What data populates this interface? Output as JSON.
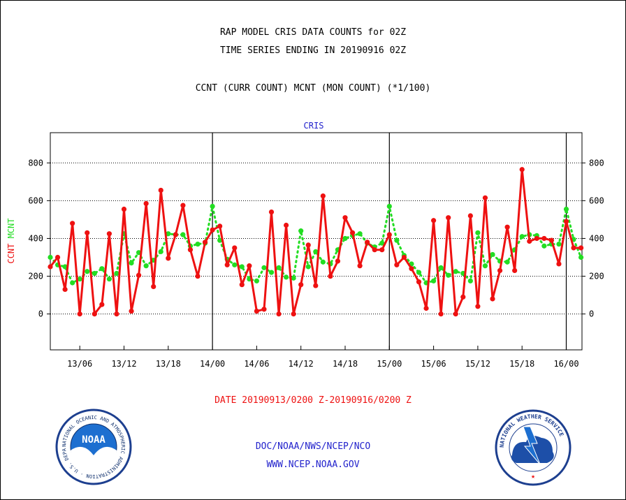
{
  "title_line1": "RAP MODEL CRIS DATA COUNTS for 02Z",
  "title_line2": "TIME SERIES ENDING IN 20190916 02Z",
  "subtitle": "CCNT (CURR COUNT) MCNT (MON COUNT) (*1/100)",
  "date_range": "DATE 20190913/0200 Z-20190916/0200 Z",
  "credit": "DOC/NOAA/NWS/NCEP/NCO",
  "website": "WWW.NCEP.NOAA.GOV",
  "logo_left": {
    "text": "NOAA",
    "ring_text": "NATIONAL OCEANIC AND ATMOSPHERIC ADMINISTRATION · U.S. DEPARTMENT OF COMMERCE"
  },
  "logo_right": {
    "ring_text": "NATIONAL WEATHER SERVICE"
  },
  "colors": {
    "ccnt": "#ee1111",
    "mcnt": "#22dd22",
    "plot_label": "#2222cc",
    "footer": "#2222cc",
    "date": "#ee1111"
  },
  "chart_data": {
    "type": "line",
    "title": "CRIS",
    "ylabel_parts": [
      {
        "text": "CCNT",
        "color": "#ee1111"
      },
      {
        "text": "MCNT",
        "color": "#22dd22"
      }
    ],
    "x": [
      "13/02",
      "13/03",
      "13/04",
      "13/05",
      "13/06",
      "13/07",
      "13/08",
      "13/09",
      "13/10",
      "13/11",
      "13/12",
      "13/13",
      "13/14",
      "13/15",
      "13/16",
      "13/17",
      "13/18",
      "13/19",
      "13/20",
      "13/21",
      "13/22",
      "13/23",
      "14/00",
      "14/01",
      "14/02",
      "14/03",
      "14/04",
      "14/05",
      "14/06",
      "14/07",
      "14/08",
      "14/09",
      "14/10",
      "14/11",
      "14/12",
      "14/13",
      "14/14",
      "14/15",
      "14/16",
      "14/17",
      "14/18",
      "14/19",
      "14/20",
      "14/21",
      "14/22",
      "14/23",
      "15/00",
      "15/01",
      "15/02",
      "15/03",
      "15/04",
      "15/05",
      "15/06",
      "15/07",
      "15/08",
      "15/09",
      "15/10",
      "15/11",
      "15/12",
      "15/13",
      "15/14",
      "15/15",
      "15/16",
      "15/17",
      "15/18",
      "15/19",
      "15/20",
      "15/21",
      "15/22",
      "15/23",
      "16/00",
      "16/01",
      "16/02"
    ],
    "xticks": [
      {
        "x": "13/06",
        "label": "13/06"
      },
      {
        "x": "13/12",
        "label": "13/12"
      },
      {
        "x": "13/18",
        "label": "13/18"
      },
      {
        "x": "14/00",
        "label": "14/00"
      },
      {
        "x": "14/06",
        "label": "14/06"
      },
      {
        "x": "14/12",
        "label": "14/12"
      },
      {
        "x": "14/18",
        "label": "14/18"
      },
      {
        "x": "15/00",
        "label": "15/00"
      },
      {
        "x": "15/06",
        "label": "15/06"
      },
      {
        "x": "15/12",
        "label": "15/12"
      },
      {
        "x": "15/18",
        "label": "15/18"
      },
      {
        "x": "16/00",
        "label": "16/00"
      }
    ],
    "day_boundaries": [
      "14/00",
      "15/00",
      "16/00"
    ],
    "yticks": [
      0,
      200,
      400,
      600,
      800
    ],
    "ylim": [
      -190,
      960
    ],
    "grid": true,
    "series": [
      {
        "name": "CCNT",
        "color": "#ee1111",
        "style": "solid",
        "values": [
          250,
          300,
          130,
          480,
          0,
          430,
          0,
          50,
          425,
          0,
          555,
          15,
          205,
          585,
          145,
          655,
          295,
          420,
          575,
          340,
          200,
          380,
          445,
          465,
          260,
          350,
          155,
          255,
          15,
          25,
          540,
          0,
          470,
          0,
          155,
          365,
          150,
          625,
          200,
          280,
          510,
          430,
          255,
          380,
          340,
          340,
          420,
          260,
          300,
          240,
          170,
          30,
          495,
          0,
          510,
          0,
          90,
          520,
          40,
          615,
          80,
          230,
          460,
          230,
          765,
          385,
          400,
          400,
          390,
          265,
          490,
          350,
          350
        ]
      },
      {
        "name": "MCNT",
        "color": "#22dd22",
        "style": "dotted",
        "values": [
          300,
          260,
          250,
          165,
          185,
          225,
          215,
          240,
          185,
          215,
          425,
          270,
          325,
          255,
          285,
          330,
          425,
          420,
          420,
          360,
          370,
          375,
          570,
          390,
          290,
          260,
          250,
          185,
          175,
          245,
          220,
          245,
          195,
          190,
          440,
          250,
          330,
          275,
          265,
          340,
          400,
          415,
          425,
          375,
          355,
          375,
          570,
          390,
          310,
          265,
          220,
          165,
          175,
          245,
          205,
          225,
          215,
          175,
          430,
          255,
          315,
          280,
          275,
          340,
          410,
          420,
          415,
          360,
          370,
          370,
          555,
          395,
          300
        ]
      }
    ]
  }
}
